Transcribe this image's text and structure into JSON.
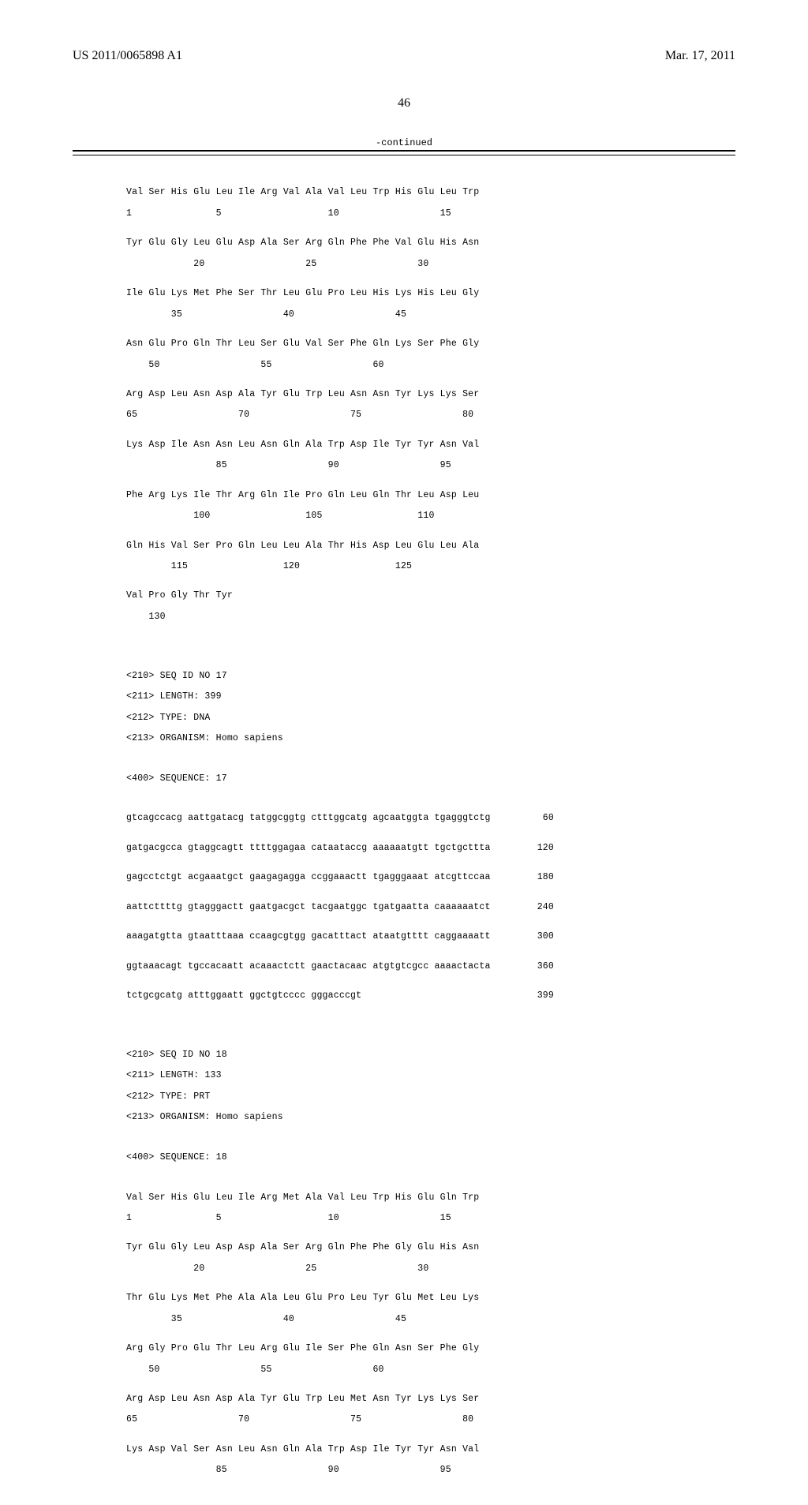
{
  "header": {
    "publication_id": "US 2011/0065898 A1",
    "publication_date": "Mar. 17, 2011"
  },
  "page_number": "46",
  "continued_label": "-continued",
  "seq16": {
    "rows": [
      {
        "aa": "Val Ser His Glu Leu Ile Arg Val Ala Val Leu Trp His Glu Leu Trp",
        "pos": "1               5                   10                  15"
      },
      {
        "aa": "Tyr Glu Gly Leu Glu Asp Ala Ser Arg Gln Phe Phe Val Glu His Asn",
        "pos": "            20                  25                  30"
      },
      {
        "aa": "Ile Glu Lys Met Phe Ser Thr Leu Glu Pro Leu His Lys His Leu Gly",
        "pos": "        35                  40                  45"
      },
      {
        "aa": "Asn Glu Pro Gln Thr Leu Ser Glu Val Ser Phe Gln Lys Ser Phe Gly",
        "pos": "    50                  55                  60"
      },
      {
        "aa": "Arg Asp Leu Asn Asp Ala Tyr Glu Trp Leu Asn Asn Tyr Lys Lys Ser",
        "pos": "65                  70                  75                  80"
      },
      {
        "aa": "Lys Asp Ile Asn Asn Leu Asn Gln Ala Trp Asp Ile Tyr Tyr Asn Val",
        "pos": "                85                  90                  95"
      },
      {
        "aa": "Phe Arg Lys Ile Thr Arg Gln Ile Pro Gln Leu Gln Thr Leu Asp Leu",
        "pos": "            100                 105                 110"
      },
      {
        "aa": "Gln His Val Ser Pro Gln Leu Leu Ala Thr His Asp Leu Glu Leu Ala",
        "pos": "        115                 120                 125"
      },
      {
        "aa": "Val Pro Gly Thr Tyr",
        "pos": "    130"
      }
    ]
  },
  "seq17_meta": {
    "l1": "<210> SEQ ID NO 17",
    "l2": "<211> LENGTH: 399",
    "l3": "<212> TYPE: DNA",
    "l4": "<213> ORGANISM: Homo sapiens",
    "l5": "<400> SEQUENCE: 17"
  },
  "seq17_dna": [
    {
      "seq": "gtcagccacg aattgatacg tatggcggtg ctttggcatg agcaatggta tgagggtctg",
      "n": "60"
    },
    {
      "seq": "gatgacgcca gtaggcagtt ttttggagaa cataataccg aaaaaatgtt tgctgcttta",
      "n": "120"
    },
    {
      "seq": "gagcctctgt acgaaatgct gaagagagga ccggaaactt tgagggaaat atcgttccaa",
      "n": "180"
    },
    {
      "seq": "aattcttttg gtagggactt gaatgacgct tacgaatggc tgatgaatta caaaaaatct",
      "n": "240"
    },
    {
      "seq": "aaagatgtta gtaatttaaa ccaagcgtgg gacatttact ataatgtttt caggaaaatt",
      "n": "300"
    },
    {
      "seq": "ggtaaacagt tgccacaatt acaaactctt gaactacaac atgtgtcgcc aaaactacta",
      "n": "360"
    },
    {
      "seq": "tctgcgcatg atttggaatt ggctgtcccc gggacccgt",
      "n": "399"
    }
  ],
  "seq18_meta": {
    "l1": "<210> SEQ ID NO 18",
    "l2": "<211> LENGTH: 133",
    "l3": "<212> TYPE: PRT",
    "l4": "<213> ORGANISM: Homo sapiens",
    "l5": "<400> SEQUENCE: 18"
  },
  "seq18": {
    "rows": [
      {
        "aa": "Val Ser His Glu Leu Ile Arg Met Ala Val Leu Trp His Glu Gln Trp",
        "pos": "1               5                   10                  15"
      },
      {
        "aa": "Tyr Glu Gly Leu Asp Asp Ala Ser Arg Gln Phe Phe Gly Glu His Asn",
        "pos": "            20                  25                  30"
      },
      {
        "aa": "Thr Glu Lys Met Phe Ala Ala Leu Glu Pro Leu Tyr Glu Met Leu Lys",
        "pos": "        35                  40                  45"
      },
      {
        "aa": "Arg Gly Pro Glu Thr Leu Arg Glu Ile Ser Phe Gln Asn Ser Phe Gly",
        "pos": "    50                  55                  60"
      },
      {
        "aa": "Arg Asp Leu Asn Asp Ala Tyr Glu Trp Leu Met Asn Tyr Lys Lys Ser",
        "pos": "65                  70                  75                  80"
      },
      {
        "aa": "Lys Asp Val Ser Asn Leu Asn Gln Ala Trp Asp Ile Tyr Tyr Asn Val",
        "pos": "                85                  90                  95"
      }
    ]
  },
  "colors": {
    "background": "#ffffff",
    "text": "#000000",
    "line": "#000000"
  },
  "fonts": {
    "header": "Times New Roman",
    "body": "Courier New",
    "header_size_pt": 12,
    "body_size_pt": 8.5
  }
}
